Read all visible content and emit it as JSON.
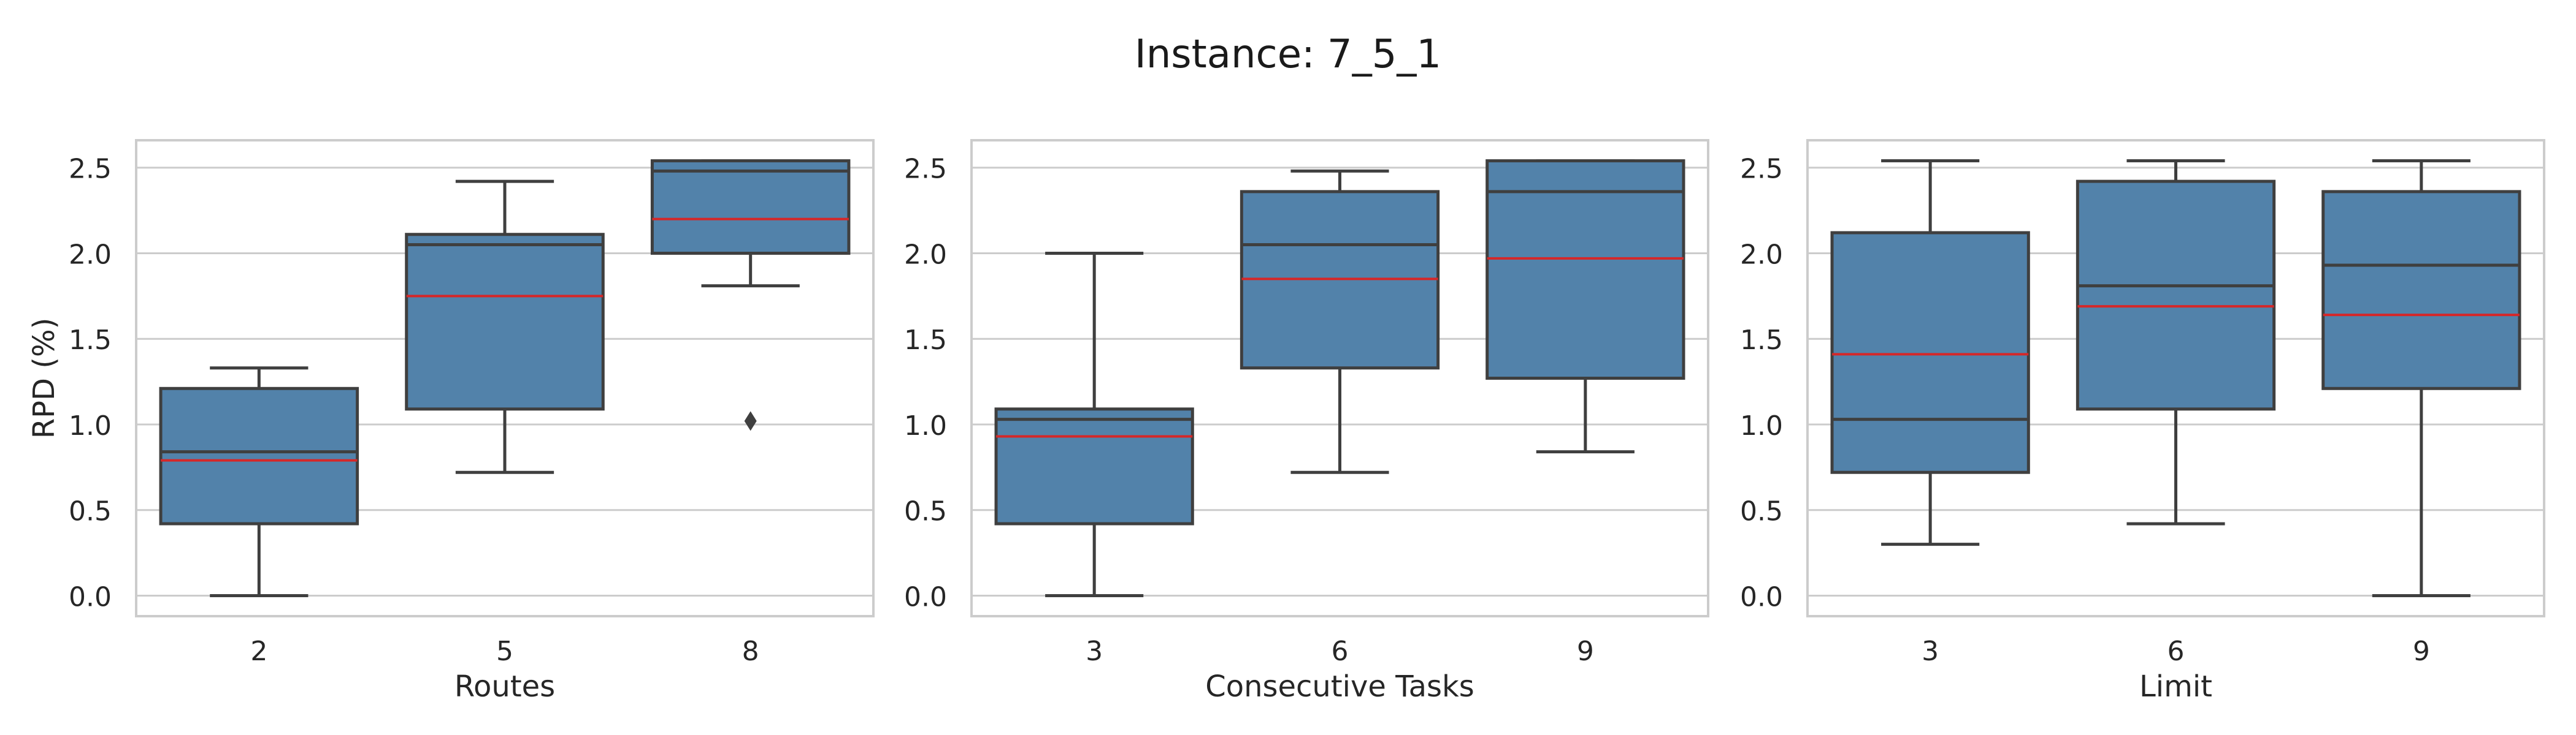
{
  "figure": {
    "title": "Instance: 7_5_1"
  },
  "colors": {
    "box": "#5282AA",
    "edge": "#3f3f3f",
    "median": "#d62728",
    "grid": "#cccccc",
    "frame": "#cccccc"
  },
  "chart_data": [
    {
      "type": "box",
      "xlabel": "Routes",
      "ylabel": "RPD (%)",
      "ylim": [
        -0.12,
        2.66
      ],
      "yticks": [
        "0.0",
        "0.5",
        "1.0",
        "1.5",
        "2.0",
        "2.5"
      ],
      "grid": true,
      "categories": [
        "2",
        "5",
        "8"
      ],
      "boxes": [
        {
          "whisker_low": 0.0,
          "q1": 0.42,
          "median": 0.84,
          "mean": 0.79,
          "q3": 1.21,
          "whisker_high": 1.33,
          "outliers": []
        },
        {
          "whisker_low": 0.72,
          "q1": 1.09,
          "median": 2.05,
          "mean": 1.75,
          "q3": 2.11,
          "whisker_high": 2.42,
          "outliers": []
        },
        {
          "whisker_low": 1.81,
          "q1": 2.0,
          "median": 2.48,
          "mean": 2.2,
          "q3": 2.54,
          "whisker_high": 2.54,
          "outliers": [
            1.02
          ]
        }
      ]
    },
    {
      "type": "box",
      "xlabel": "Consecutive Tasks",
      "ylabel": "",
      "ylim": [
        -0.12,
        2.66
      ],
      "yticks": [
        "0.0",
        "0.5",
        "1.0",
        "1.5",
        "2.0",
        "2.5"
      ],
      "grid": true,
      "categories": [
        "3",
        "6",
        "9"
      ],
      "boxes": [
        {
          "whisker_low": 0.0,
          "q1": 0.42,
          "median": 1.03,
          "mean": 0.93,
          "q3": 1.09,
          "whisker_high": 2.0,
          "outliers": []
        },
        {
          "whisker_low": 0.72,
          "q1": 1.33,
          "median": 2.05,
          "mean": 1.85,
          "q3": 2.36,
          "whisker_high": 2.48,
          "outliers": []
        },
        {
          "whisker_low": 0.84,
          "q1": 1.27,
          "median": 2.36,
          "mean": 1.97,
          "q3": 2.54,
          "whisker_high": 2.54,
          "outliers": []
        }
      ]
    },
    {
      "type": "box",
      "xlabel": "Limit",
      "ylabel": "",
      "ylim": [
        -0.12,
        2.66
      ],
      "yticks": [
        "0.0",
        "0.5",
        "1.0",
        "1.5",
        "2.0",
        "2.5"
      ],
      "grid": true,
      "categories": [
        "3",
        "6",
        "9"
      ],
      "boxes": [
        {
          "whisker_low": 0.3,
          "q1": 0.72,
          "median": 1.03,
          "mean": 1.41,
          "q3": 2.12,
          "whisker_high": 2.54,
          "outliers": []
        },
        {
          "whisker_low": 0.42,
          "q1": 1.09,
          "median": 1.81,
          "mean": 1.69,
          "q3": 2.42,
          "whisker_high": 2.54,
          "outliers": []
        },
        {
          "whisker_low": 0.0,
          "q1": 1.21,
          "median": 1.93,
          "mean": 1.64,
          "q3": 2.36,
          "whisker_high": 2.54,
          "outliers": []
        }
      ]
    }
  ]
}
